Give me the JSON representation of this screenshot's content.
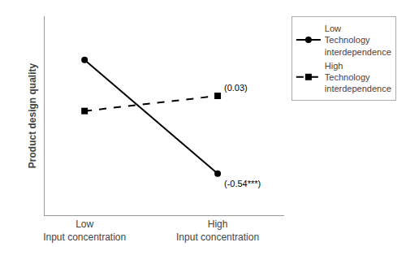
{
  "chart_data": {
    "type": "line",
    "categories": [
      "Low\nInput concentration",
      "High\nInput concentration"
    ],
    "series": [
      {
        "name": "Low\nTechnology\ninterdependence",
        "color": "#000000",
        "line_style": "solid",
        "marker": "circle",
        "values": [
          0.82,
          0.22
        ]
      },
      {
        "name": "High\nTechnology\ninterdependence",
        "color": "#000000",
        "line_style": "dashed",
        "marker": "square",
        "values": [
          0.55,
          0.63
        ]
      }
    ],
    "y_label": "Product design quality",
    "ylim": [
      0.0,
      1.05
    ],
    "yticks": [],
    "tick_labels": "x",
    "grid": false,
    "legend": "right",
    "annotations": [
      {
        "text": "(0.03)",
        "x": "High\nInput concentration",
        "y": 0.63,
        "position": "above"
      },
      {
        "text": "(-0.54***)",
        "x": "High\nInput concentration",
        "y": 0.22,
        "position": "below"
      }
    ]
  }
}
